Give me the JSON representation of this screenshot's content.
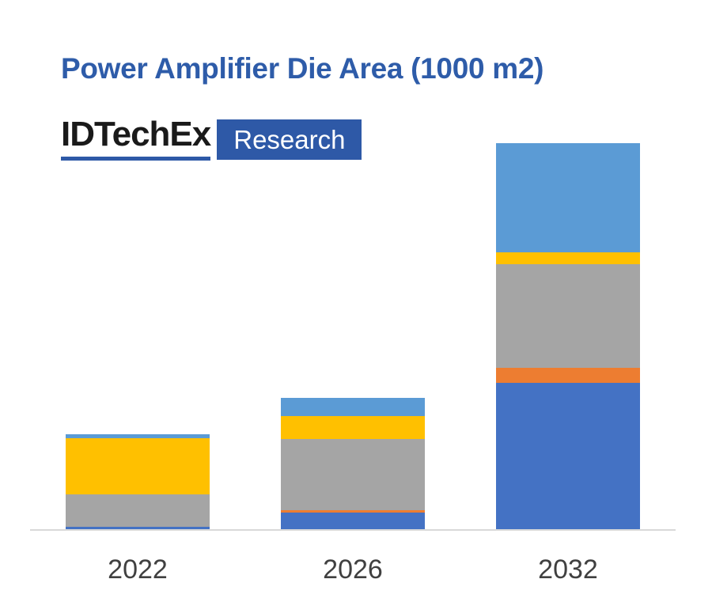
{
  "title": {
    "text": "Power Amplifier Die Area (1000 m2)",
    "color": "#2e5ca9"
  },
  "logo": {
    "brand": "IDTechEx",
    "brand_color": "#1a1a1a",
    "suffix": "Research",
    "suffix_color": "#ffffff",
    "accent_color": "#2e59a7"
  },
  "chart_data": {
    "type": "bar",
    "stacked": true,
    "title": "Power Amplifier Die Area (1000 m2)",
    "unit_note": "1000 m2",
    "categories": [
      "2022",
      "2026",
      "2032"
    ],
    "series": [
      {
        "name": "dark-blue",
        "color": "#4472c4",
        "values": [
          4,
          22,
          186
        ]
      },
      {
        "name": "orange",
        "color": "#ed7d31",
        "values": [
          0,
          3,
          19
        ]
      },
      {
        "name": "gray",
        "color": "#a5a5a5",
        "values": [
          41,
          90,
          131
        ]
      },
      {
        "name": "yellow",
        "color": "#ffc000",
        "values": [
          71,
          29,
          15
        ]
      },
      {
        "name": "light-blue",
        "color": "#5b9bd5",
        "values": [
          5,
          23,
          138
        ]
      }
    ],
    "totals": [
      121,
      167,
      489
    ],
    "values_note": "relative units estimated from bar pixel heights; no y-axis shown",
    "ylim": [
      0,
      500
    ],
    "y_axis_visible": false,
    "legend_visible": false,
    "axis_line_color": "#d9d9d9",
    "label_color": "#404040"
  }
}
